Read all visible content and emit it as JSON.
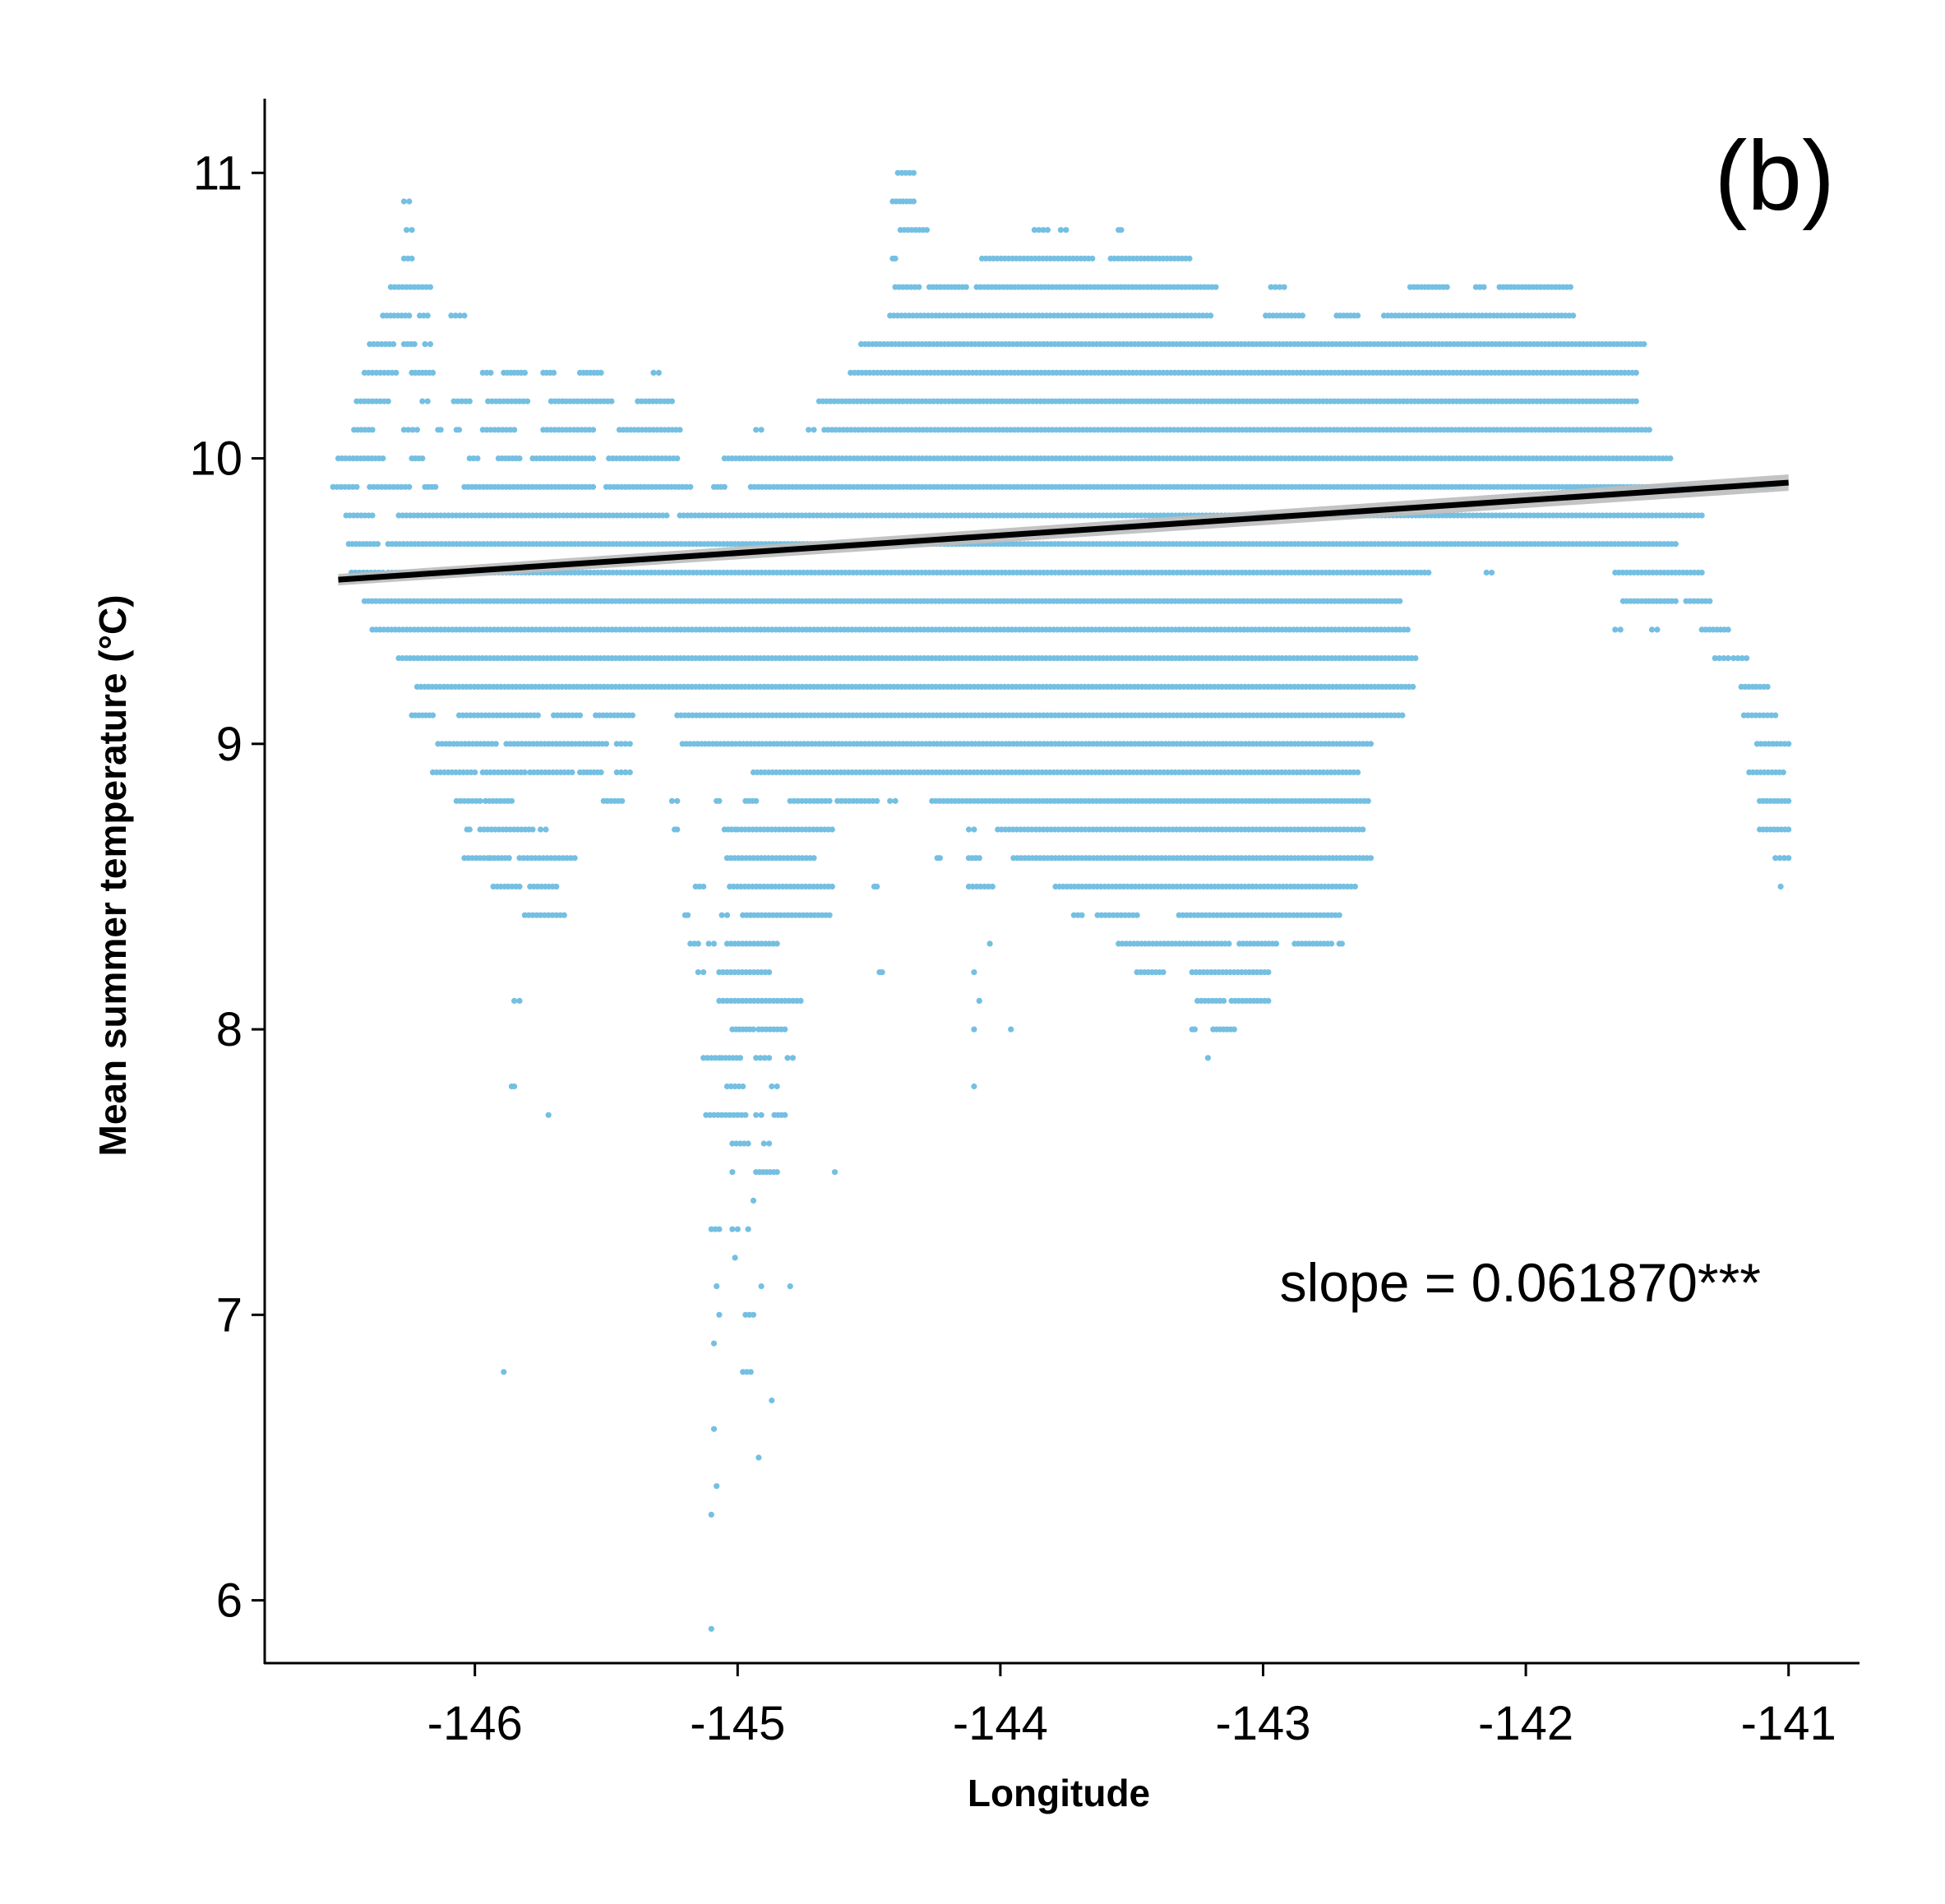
{
  "chart_data": {
    "type": "scatter",
    "panel_label": "(b)",
    "xlabel": "Longitude",
    "ylabel": "Mean summer temperature (°C)",
    "xlim": [
      -146.8,
      -140.73
    ],
    "ylim": [
      5.78,
      11.26
    ],
    "x_ticks": [
      -146,
      -145,
      -144,
      -143,
      -142,
      -141
    ],
    "y_ticks": [
      6,
      7,
      8,
      9,
      10,
      11
    ],
    "grid": false,
    "point_color": "#74BFE2",
    "line_color": "#000000",
    "ci_color": "#BDBDBD",
    "annotation": "slope = 0.061870***",
    "trend_line": {
      "x": [
        -146.52,
        -141.0
      ],
      "y": [
        9.575,
        9.915
      ]
    },
    "bands": [
      {
        "y": 11.0,
        "segments": [
          [
            -144.39,
            -144.33
          ]
        ]
      },
      {
        "y": 10.9,
        "segments": [
          [
            -146.27,
            -146.25
          ],
          [
            -144.41,
            -144.33
          ]
        ]
      },
      {
        "y": 10.8,
        "segments": [
          [
            -146.26,
            -146.24
          ],
          [
            -144.38,
            -144.28
          ],
          [
            -143.87,
            -143.82
          ],
          [
            -143.77,
            -143.75
          ],
          [
            -143.55,
            -143.54
          ]
        ]
      },
      {
        "y": 10.7,
        "segments": [
          [
            -146.27,
            -146.24
          ],
          [
            -144.41,
            -144.4
          ],
          [
            -144.07,
            -143.65
          ],
          [
            -143.58,
            -143.28
          ]
        ]
      },
      {
        "y": 10.6,
        "segments": [
          [
            -146.32,
            -146.17
          ],
          [
            -144.4,
            -144.31
          ],
          [
            -144.27,
            -144.13
          ],
          [
            -144.09,
            -143.18
          ],
          [
            -142.97,
            -142.92
          ],
          [
            -142.44,
            -142.3
          ],
          [
            -142.19,
            -142.16
          ],
          [
            -142.1,
            -141.83
          ]
        ]
      },
      {
        "y": 10.5,
        "segments": [
          [
            -146.35,
            -146.25
          ],
          [
            -146.21,
            -146.18
          ],
          [
            -146.09,
            -146.04
          ],
          [
            -144.42,
            -143.2
          ],
          [
            -142.99,
            -142.85
          ],
          [
            -142.72,
            -142.64
          ],
          [
            -142.54,
            -141.82
          ]
        ]
      },
      {
        "y": 10.4,
        "segments": [
          [
            -146.4,
            -146.31
          ],
          [
            -146.27,
            -146.23
          ],
          [
            -146.19,
            -146.17
          ],
          [
            -144.53,
            -141.55
          ]
        ]
      },
      {
        "y": 10.3,
        "segments": [
          [
            -146.42,
            -146.3
          ],
          [
            -146.24,
            -146.16
          ],
          [
            -145.97,
            -145.94
          ],
          [
            -145.89,
            -145.81
          ],
          [
            -145.74,
            -145.7
          ],
          [
            -145.6,
            -145.52
          ],
          [
            -145.32,
            -145.3
          ],
          [
            -144.57,
            -141.58
          ]
        ]
      },
      {
        "y": 10.2,
        "segments": [
          [
            -146.45,
            -146.33
          ],
          [
            -146.2,
            -146.18
          ],
          [
            -146.08,
            -146.02
          ],
          [
            -145.95,
            -145.8
          ],
          [
            -145.71,
            -145.48
          ],
          [
            -145.38,
            -145.25
          ],
          [
            -144.69,
            -141.58
          ]
        ]
      },
      {
        "y": 10.1,
        "segments": [
          [
            -146.46,
            -146.39
          ],
          [
            -146.27,
            -146.22
          ],
          [
            -146.14,
            -146.13
          ],
          [
            -146.07,
            -146.06
          ],
          [
            -145.97,
            -145.85
          ],
          [
            -145.74,
            -145.55
          ],
          [
            -145.45,
            -145.22
          ],
          [
            -144.93,
            -144.91
          ],
          [
            -144.73,
            -144.71
          ],
          [
            -144.67,
            -141.53
          ]
        ]
      },
      {
        "y": 10.0,
        "segments": [
          [
            -146.52,
            -146.35
          ],
          [
            -146.24,
            -146.2
          ],
          [
            -146.02,
            -145.99
          ],
          [
            -145.91,
            -145.83
          ],
          [
            -145.78,
            -145.55
          ],
          [
            -145.49,
            -145.23
          ],
          [
            -145.05,
            -144.95
          ],
          [
            -144.95,
            -141.45
          ]
        ]
      },
      {
        "y": 9.9,
        "segments": [
          [
            -146.54,
            -146.45
          ],
          [
            -146.4,
            -146.25
          ],
          [
            -146.19,
            -146.15
          ],
          [
            -146.04,
            -145.55
          ],
          [
            -145.5,
            -145.18
          ],
          [
            -145.09,
            -145.05
          ],
          [
            -144.95,
            -141.28
          ],
          [
            -141.21,
            -141.06
          ]
        ]
      },
      {
        "y": 9.8,
        "segments": [
          [
            -146.49,
            -146.39
          ],
          [
            -146.29,
            -145.27
          ],
          [
            -145.22,
            -141.33
          ]
        ]
      },
      {
        "y": 9.7,
        "segments": [
          [
            -146.48,
            -146.37
          ],
          [
            -146.33,
            -141.43
          ]
        ]
      },
      {
        "y": 9.6,
        "segments": [
          [
            -146.47,
            -146.35
          ],
          [
            -146.33,
            -142.37
          ],
          [
            -142.15,
            -142.13
          ],
          [
            -141.66,
            -141.33
          ]
        ]
      },
      {
        "y": 9.5,
        "segments": [
          [
            -146.42,
            -142.48
          ],
          [
            -141.63,
            -141.43
          ],
          [
            -141.39,
            -141.3
          ]
        ]
      },
      {
        "y": 9.4,
        "segments": [
          [
            -146.39,
            -142.45
          ],
          [
            -141.66,
            -141.64
          ],
          [
            -141.52,
            -141.5
          ],
          [
            -141.33,
            -141.23
          ]
        ]
      },
      {
        "y": 9.3,
        "segments": [
          [
            -146.29,
            -142.42
          ],
          [
            -141.28,
            -141.23
          ],
          [
            -141.21,
            -141.16
          ]
        ]
      },
      {
        "y": 9.2,
        "segments": [
          [
            -146.22,
            -142.43
          ],
          [
            -141.18,
            -141.08
          ]
        ]
      },
      {
        "y": 9.1,
        "segments": [
          [
            -146.24,
            -146.16
          ],
          [
            -146.06,
            -145.76
          ],
          [
            -145.7,
            -145.6
          ],
          [
            -145.54,
            -145.4
          ],
          [
            -145.23,
            -142.47
          ],
          [
            -141.17,
            -141.05
          ]
        ]
      },
      {
        "y": 9.0,
        "segments": [
          [
            -146.14,
            -145.92
          ],
          [
            -145.88,
            -145.5
          ],
          [
            -145.46,
            -145.41
          ],
          [
            -145.21,
            -142.59
          ],
          [
            -141.12,
            -141.0
          ]
        ]
      },
      {
        "y": 8.9,
        "segments": [
          [
            -146.16,
            -146.0
          ],
          [
            -145.97,
            -145.81
          ],
          [
            -145.79,
            -145.63
          ],
          [
            -145.6,
            -145.52
          ],
          [
            -145.46,
            -145.41
          ],
          [
            -144.94,
            -142.64
          ],
          [
            -141.15,
            -141.02
          ]
        ]
      },
      {
        "y": 8.8,
        "segments": [
          [
            -146.07,
            -145.98
          ],
          [
            -145.96,
            -145.86
          ],
          [
            -145.51,
            -145.44
          ],
          [
            -145.25,
            -145.23
          ],
          [
            -145.08,
            -145.07
          ],
          [
            -144.97,
            -144.93
          ],
          [
            -144.8,
            -144.65
          ],
          [
            -144.62,
            -144.47
          ],
          [
            -144.42,
            -144.4
          ],
          [
            -144.26,
            -142.6
          ],
          [
            -141.11,
            -141.0
          ]
        ]
      },
      {
        "y": 8.7,
        "segments": [
          [
            -146.03,
            -146.02
          ],
          [
            -145.98,
            -145.78
          ],
          [
            -145.75,
            -145.73
          ],
          [
            -145.24,
            -145.23
          ],
          [
            -145.05,
            -145.01
          ],
          [
            -145.0,
            -144.64
          ],
          [
            -144.12,
            -144.1
          ],
          [
            -144.01,
            -142.62
          ],
          [
            -141.11,
            -141.0
          ]
        ]
      },
      {
        "y": 8.6,
        "segments": [
          [
            -146.04,
            -145.95
          ],
          [
            -145.94,
            -145.87
          ],
          [
            -145.83,
            -145.62
          ],
          [
            -145.04,
            -144.71
          ],
          [
            -144.24,
            -144.23
          ],
          [
            -144.12,
            -144.08
          ],
          [
            -143.95,
            -142.59
          ],
          [
            -141.05,
            -141.0
          ]
        ]
      },
      {
        "y": 8.5,
        "segments": [
          [
            -145.93,
            -145.83
          ],
          [
            -145.79,
            -145.69
          ],
          [
            -145.16,
            -145.13
          ],
          [
            -145.03,
            -144.64
          ],
          [
            -144.48,
            -144.47
          ],
          [
            -144.12,
            -144.03
          ],
          [
            -143.79,
            -142.65
          ],
          [
            -141.03,
            -141.03
          ]
        ]
      },
      {
        "y": 8.4,
        "segments": [
          [
            -145.81,
            -145.66
          ],
          [
            -145.2,
            -145.19
          ],
          [
            -145.06,
            -145.04
          ],
          [
            -144.98,
            -144.65
          ],
          [
            -143.72,
            -143.69
          ],
          [
            -143.63,
            -143.48
          ],
          [
            -143.32,
            -142.71
          ]
        ]
      },
      {
        "y": 8.3,
        "segments": [
          [
            -145.18,
            -145.15
          ],
          [
            -145.11,
            -145.09
          ],
          [
            -145.04,
            -144.85
          ],
          [
            -144.04,
            -144.04
          ],
          [
            -143.55,
            -143.13
          ],
          [
            -143.09,
            -142.95
          ],
          [
            -142.88,
            -142.74
          ],
          [
            -142.71,
            -142.7
          ]
        ]
      },
      {
        "y": 8.2,
        "segments": [
          [
            -145.15,
            -145.13
          ],
          [
            -145.07,
            -144.88
          ],
          [
            -144.46,
            -144.45
          ],
          [
            -144.1,
            -144.1
          ],
          [
            -143.48,
            -143.38
          ],
          [
            -143.27,
            -142.98
          ]
        ]
      },
      {
        "y": 8.1,
        "segments": [
          [
            -145.85,
            -145.83
          ],
          [
            -145.07,
            -144.76
          ],
          [
            -144.08,
            -144.08
          ],
          [
            -143.25,
            -143.15
          ],
          [
            -143.12,
            -142.98
          ]
        ]
      },
      {
        "y": 8.0,
        "segments": [
          [
            -145.02,
            -144.94
          ],
          [
            -144.92,
            -144.82
          ],
          [
            -144.1,
            -144.1
          ],
          [
            -143.96,
            -143.96
          ],
          [
            -143.27,
            -143.26
          ],
          [
            -143.19,
            -143.11
          ]
        ]
      },
      {
        "y": 7.9,
        "segments": [
          [
            -145.13,
            -145.07
          ],
          [
            -145.06,
            -144.99
          ],
          [
            -144.93,
            -144.88
          ],
          [
            -144.81,
            -144.79
          ],
          [
            -143.21,
            -143.21
          ]
        ]
      },
      {
        "y": 7.8,
        "segments": [
          [
            -145.86,
            -145.85
          ],
          [
            -145.04,
            -144.98
          ],
          [
            -144.87,
            -144.85
          ],
          [
            -144.1,
            -144.1
          ]
        ]
      },
      {
        "y": 7.7,
        "segments": [
          [
            -145.72,
            -145.72
          ],
          [
            -145.12,
            -144.97
          ],
          [
            -144.93,
            -144.91
          ],
          [
            -144.86,
            -144.82
          ]
        ]
      },
      {
        "y": 7.6,
        "segments": [
          [
            -145.02,
            -144.96
          ],
          [
            -144.9,
            -144.88
          ]
        ]
      },
      {
        "y": 7.5,
        "segments": [
          [
            -145.02,
            -145.02
          ],
          [
            -144.93,
            -144.85
          ],
          [
            -144.63,
            -144.63
          ]
        ]
      },
      {
        "y": 7.4,
        "segments": [
          [
            -144.94,
            -144.94
          ]
        ]
      },
      {
        "y": 7.3,
        "segments": [
          [
            -145.1,
            -145.07
          ],
          [
            -145.02,
            -145.0
          ],
          [
            -144.96,
            -144.96
          ]
        ]
      },
      {
        "y": 7.2,
        "segments": [
          [
            -145.01,
            -145.01
          ]
        ]
      },
      {
        "y": 7.1,
        "segments": [
          [
            -145.08,
            -145.08
          ],
          [
            -144.91,
            -144.91
          ],
          [
            -144.8,
            -144.8
          ]
        ]
      },
      {
        "y": 7.0,
        "segments": [
          [
            -145.07,
            -145.07
          ],
          [
            -144.97,
            -144.94
          ]
        ]
      },
      {
        "y": 6.9,
        "segments": [
          [
            -145.09,
            -145.09
          ]
        ]
      },
      {
        "y": 6.8,
        "segments": [
          [
            -145.89,
            -145.89
          ],
          [
            -144.98,
            -144.95
          ]
        ]
      },
      {
        "y": 6.7,
        "segments": [
          [
            -144.87,
            -144.87
          ]
        ]
      },
      {
        "y": 6.6,
        "segments": [
          [
            -145.09,
            -145.09
          ]
        ]
      },
      {
        "y": 6.5,
        "segments": [
          [
            -144.92,
            -144.92
          ]
        ]
      },
      {
        "y": 6.4,
        "segments": [
          [
            -145.08,
            -145.08
          ]
        ]
      },
      {
        "y": 6.3,
        "segments": [
          [
            -145.1,
            -145.1
          ]
        ]
      },
      {
        "y": 5.9,
        "segments": [
          [
            -145.1,
            -145.1
          ]
        ]
      }
    ]
  }
}
